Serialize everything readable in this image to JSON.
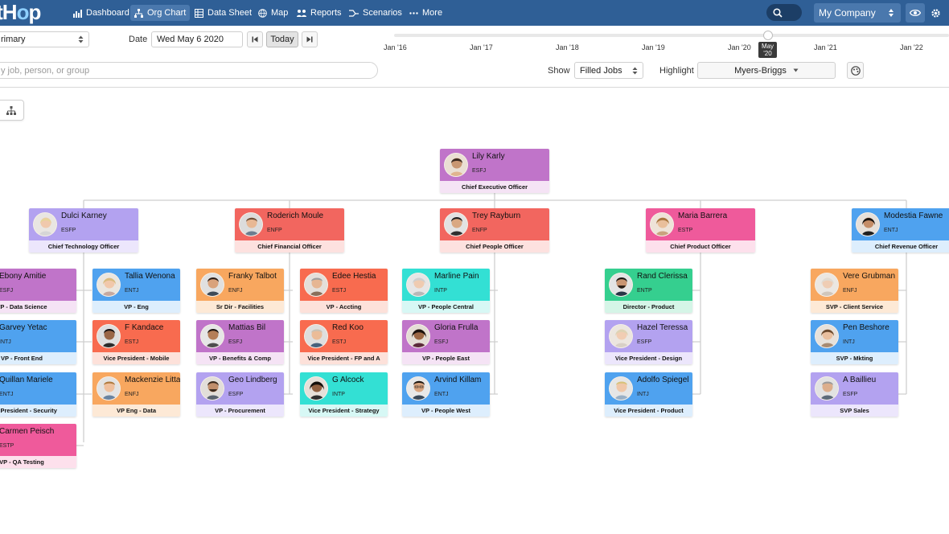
{
  "nav": {
    "logo_left": "rt",
    "logo_mid": "H",
    "logo_o": "o",
    "logo_right": "p",
    "items": [
      "Dashboard",
      "Org Chart",
      "Data Sheet",
      "Map",
      "Reports",
      "Scenarios",
      "More"
    ],
    "company": "My Company"
  },
  "controls": {
    "primary_select": "rimary",
    "date_label": "Date",
    "date_value": "Wed May 6 2020",
    "today_label": "Today",
    "search_placeholder": "y job, person, or group",
    "show_label": "Show",
    "show_value": "Filled Jobs",
    "highlight_label": "Highlight",
    "highlight_value": "Myers-Briggs"
  },
  "timeline": {
    "labels": [
      "Jan '16",
      "Jan '17",
      "Jan '18",
      "Jan '19",
      "Jan '20",
      "Jan '21",
      "Jan '22"
    ],
    "tooltip_line1": "May",
    "tooltip_line2": "'20"
  },
  "org": {
    "ceo": {
      "name": "Lily Karly",
      "type": "ESFJ",
      "title": "Chief Executive Officer",
      "color": "purple"
    },
    "level1": [
      {
        "name": "Dulci Karney",
        "type": "ESFP",
        "title": "Chief Technology Officer",
        "color": "lav"
      },
      {
        "name": "Roderich Moule",
        "type": "ENFP",
        "title": "Chief Financial Officer",
        "color": "red"
      },
      {
        "name": "Trey Rayburn",
        "type": "ENFP",
        "title": "Chief People Officer",
        "color": "red"
      },
      {
        "name": "Maria Barrera",
        "type": "ESTP",
        "title": "Chief Product Officer",
        "color": "pink"
      },
      {
        "name": "Modestia Fawne",
        "type": "ENTJ",
        "title": "Chief Revenue Officer",
        "color": "blue"
      }
    ],
    "level2": [
      {
        "name": "Ebony Amitie",
        "type": "ESFJ",
        "title": "VP - Data Science",
        "color": "purple"
      },
      {
        "name": "Garvey Yetac",
        "type": "INTJ",
        "title": "VP - Front End",
        "color": "blue"
      },
      {
        "name": "Quillan Mariele",
        "type": "ENTJ",
        "title": "Vice President - Security",
        "color": "blue"
      },
      {
        "name": "Carmen Peisch",
        "type": "ESTP",
        "title": "VP - QA Testing",
        "color": "pink"
      },
      {
        "name": "Tallia Wenona",
        "type": "ENTJ",
        "title": "VP - Eng",
        "color": "blue"
      },
      {
        "name": "F Kandace",
        "type": "ESTJ",
        "title": "Vice President - Mobile",
        "color": "coral"
      },
      {
        "name": "Mackenzie Litta",
        "type": "ENFJ",
        "title": "VP Eng - Data",
        "color": "orange"
      },
      {
        "name": "Franky Talbot",
        "type": "ENFJ",
        "title": "Sr Dir - Facilities",
        "color": "orange"
      },
      {
        "name": "Mattias Bil",
        "type": "ESFJ",
        "title": "VP - Benefits & Comp",
        "color": "purple"
      },
      {
        "name": "Geo Lindberg",
        "type": "ESFP",
        "title": "VP - Procurement",
        "color": "lav"
      },
      {
        "name": "Edee Hestia",
        "type": "ESTJ",
        "title": "VP - Accting",
        "color": "coral"
      },
      {
        "name": "Red Koo",
        "type": "ESTJ",
        "title": "Vice President - FP and A",
        "color": "coral"
      },
      {
        "name": "G Alcock",
        "type": "INTP",
        "title": "Vice President - Strategy",
        "color": "teal"
      },
      {
        "name": "Marline Pain",
        "type": "INTP",
        "title": "VP - People Central",
        "color": "teal"
      },
      {
        "name": "Gloria Frulla",
        "type": "ESFJ",
        "title": "VP - People East",
        "color": "purple"
      },
      {
        "name": "Arvind Killam",
        "type": "ENTJ",
        "title": "VP - People West",
        "color": "blue"
      },
      {
        "name": "Rand Clerissa",
        "type": "ENTP",
        "title": "Director - Product",
        "color": "green"
      },
      {
        "name": "Hazel Teressa",
        "type": "ESFP",
        "title": "Vice President - Design",
        "color": "lav"
      },
      {
        "name": "Adolfo Spiegel",
        "type": "INTJ",
        "title": "Vice President - Product",
        "color": "blue"
      },
      {
        "name": "Vere Grubman",
        "type": "ENFJ",
        "title": "SVP - Client Service",
        "color": "orange"
      },
      {
        "name": "Pen Beshore",
        "type": "INTJ",
        "title": "SVP - Mkting",
        "color": "blue"
      },
      {
        "name": "A Baillieu",
        "type": "ESFP",
        "title": "SVP Sales",
        "color": "lav"
      }
    ]
  }
}
